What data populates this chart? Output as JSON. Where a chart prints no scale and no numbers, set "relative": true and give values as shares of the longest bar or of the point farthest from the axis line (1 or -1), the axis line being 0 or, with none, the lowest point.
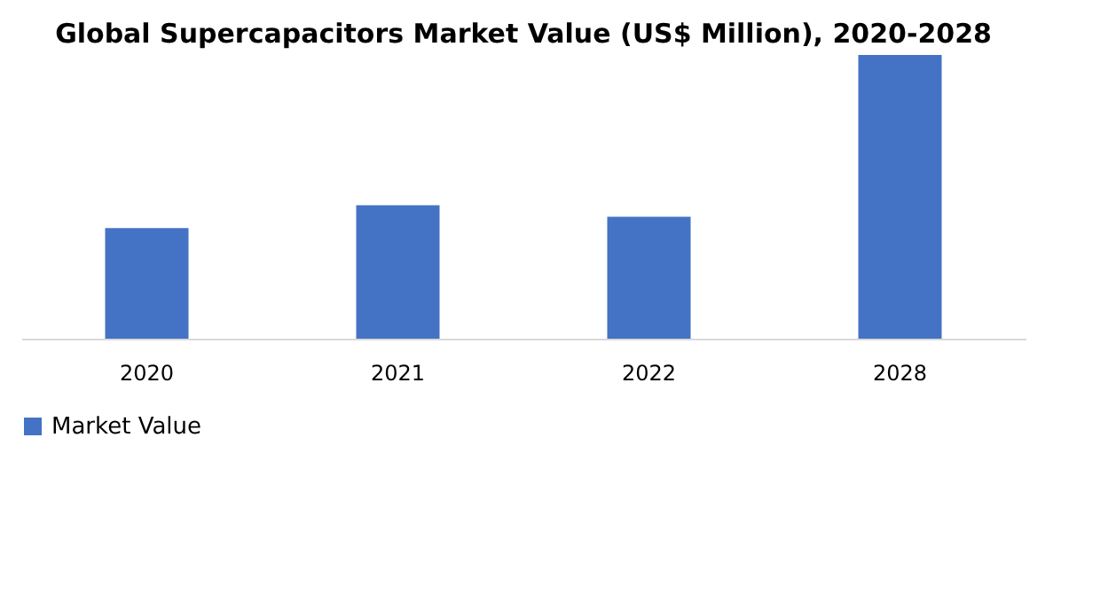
{
  "chart_data": {
    "type": "bar",
    "title": "Global Supercapacitors Market Value (US$ Million), 2020-2028",
    "categories": [
      "2020",
      "2021",
      "2022",
      "2028"
    ],
    "series": [
      {
        "name": "Market Value",
        "color": "#4472c4",
        "values": [
          0.39,
          0.47,
          0.43,
          1
        ]
      }
    ],
    "relative": true,
    "grid": false,
    "legend": "bottom"
  }
}
